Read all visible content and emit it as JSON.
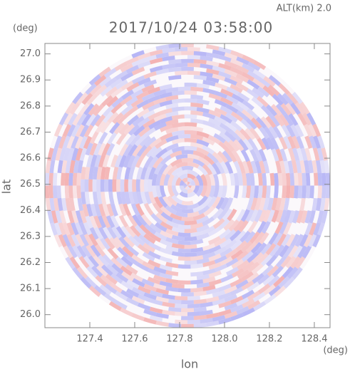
{
  "chart_data": {
    "type": "radar-ppi",
    "title": "2017/10/24 03:58:00",
    "altitude_label": "ALT(km)  2.0",
    "y_unit": "(deg)",
    "x_unit": "(deg)",
    "x_label": "lon",
    "y_label": "lat",
    "xlim": [
      127.2,
      128.47
    ],
    "ylim": [
      25.95,
      27.04
    ],
    "xticks": [
      {
        "value": 127.4,
        "label": "127.4"
      },
      {
        "value": 127.6,
        "label": "127.6"
      },
      {
        "value": 127.8,
        "label": "127.8"
      },
      {
        "value": 128.0,
        "label": "128.0"
      },
      {
        "value": 128.2,
        "label": "128.2"
      },
      {
        "value": 128.4,
        "label": "128.4"
      }
    ],
    "yticks": [
      {
        "value": 26.0,
        "label": "26.0"
      },
      26.1,
      26.2,
      26.3,
      26.4,
      26.5,
      26.6,
      26.7,
      26.8,
      26.9,
      {
        "value": 27.0,
        "label": "27.0"
      }
    ]
  }
}
